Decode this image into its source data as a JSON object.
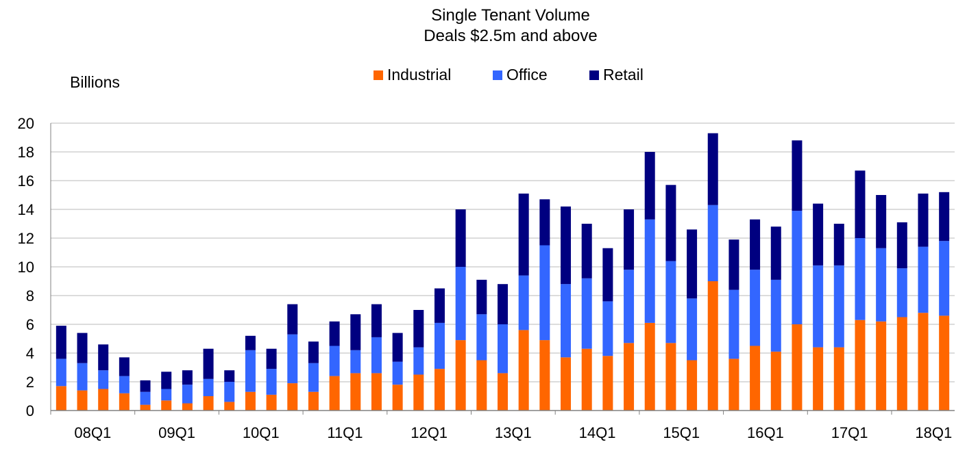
{
  "chart_data": {
    "type": "bar",
    "stacked": true,
    "title": "Single Tenant Volume",
    "subtitle": "Deals $2.5m and above",
    "ylabel": "Billions",
    "xlabel": "",
    "ylim": [
      0,
      20
    ],
    "yticks": [
      0,
      2,
      4,
      6,
      8,
      10,
      12,
      14,
      16,
      18,
      20
    ],
    "grid": true,
    "legend_position": "top-center",
    "categories": [
      "08Q1",
      "08Q2",
      "08Q3",
      "08Q4",
      "09Q1",
      "09Q2",
      "09Q3",
      "09Q4",
      "10Q1",
      "10Q2",
      "10Q3",
      "10Q4",
      "11Q1",
      "11Q2",
      "11Q3",
      "11Q4",
      "12Q1",
      "12Q2",
      "12Q3",
      "12Q4",
      "13Q1",
      "13Q2",
      "13Q3",
      "13Q4",
      "14Q1",
      "14Q2",
      "14Q3",
      "14Q4",
      "15Q1",
      "15Q2",
      "15Q3",
      "15Q4",
      "16Q1",
      "16Q2",
      "16Q3",
      "16Q4",
      "17Q1",
      "17Q2",
      "17Q3",
      "17Q4",
      "18Q1",
      "18Q2",
      "18Q3"
    ],
    "xtick_labels": [
      "08Q1",
      "09Q1",
      "10Q1",
      "11Q1",
      "12Q1",
      "13Q1",
      "14Q1",
      "15Q1",
      "16Q1",
      "17Q1",
      "18Q1"
    ],
    "series": [
      {
        "name": "Industrial",
        "color": "#FF6600",
        "values": [
          1.7,
          1.4,
          1.5,
          1.2,
          0.4,
          0.7,
          0.5,
          1.0,
          0.6,
          1.3,
          1.1,
          1.9,
          1.3,
          2.4,
          2.6,
          2.6,
          1.8,
          2.5,
          2.9,
          4.9,
          3.5,
          2.6,
          5.6,
          4.9,
          3.7,
          4.3,
          3.8,
          4.7,
          6.1,
          4.7,
          3.5,
          9.0,
          3.6,
          4.5,
          4.1,
          6.0,
          4.4,
          4.4,
          6.3,
          6.2,
          6.5,
          6.8,
          6.6
        ]
      },
      {
        "name": "Office",
        "color": "#3366FF",
        "values": [
          1.9,
          1.9,
          1.3,
          1.2,
          0.9,
          0.8,
          1.3,
          1.2,
          1.4,
          2.9,
          1.8,
          3.4,
          2.0,
          2.1,
          1.6,
          2.5,
          1.6,
          1.9,
          3.2,
          5.1,
          3.2,
          3.4,
          3.8,
          6.6,
          5.1,
          4.9,
          3.8,
          5.1,
          7.2,
          5.7,
          4.3,
          5.3,
          4.8,
          5.3,
          5.0,
          7.9,
          5.7,
          5.7,
          5.7,
          5.1,
          3.4,
          4.6,
          5.2
        ]
      },
      {
        "name": "Retail",
        "color": "#000080",
        "values": [
          2.3,
          2.1,
          1.8,
          1.3,
          0.8,
          1.2,
          1.0,
          2.1,
          0.8,
          1.0,
          1.4,
          2.1,
          1.5,
          1.7,
          2.5,
          2.3,
          2.0,
          2.6,
          2.4,
          4.0,
          2.4,
          2.8,
          5.7,
          3.2,
          5.4,
          3.8,
          3.7,
          4.2,
          4.7,
          5.3,
          4.8,
          5.0,
          3.5,
          3.5,
          3.7,
          4.9,
          4.3,
          2.9,
          4.7,
          3.7,
          3.2,
          3.7,
          3.4
        ]
      }
    ]
  }
}
